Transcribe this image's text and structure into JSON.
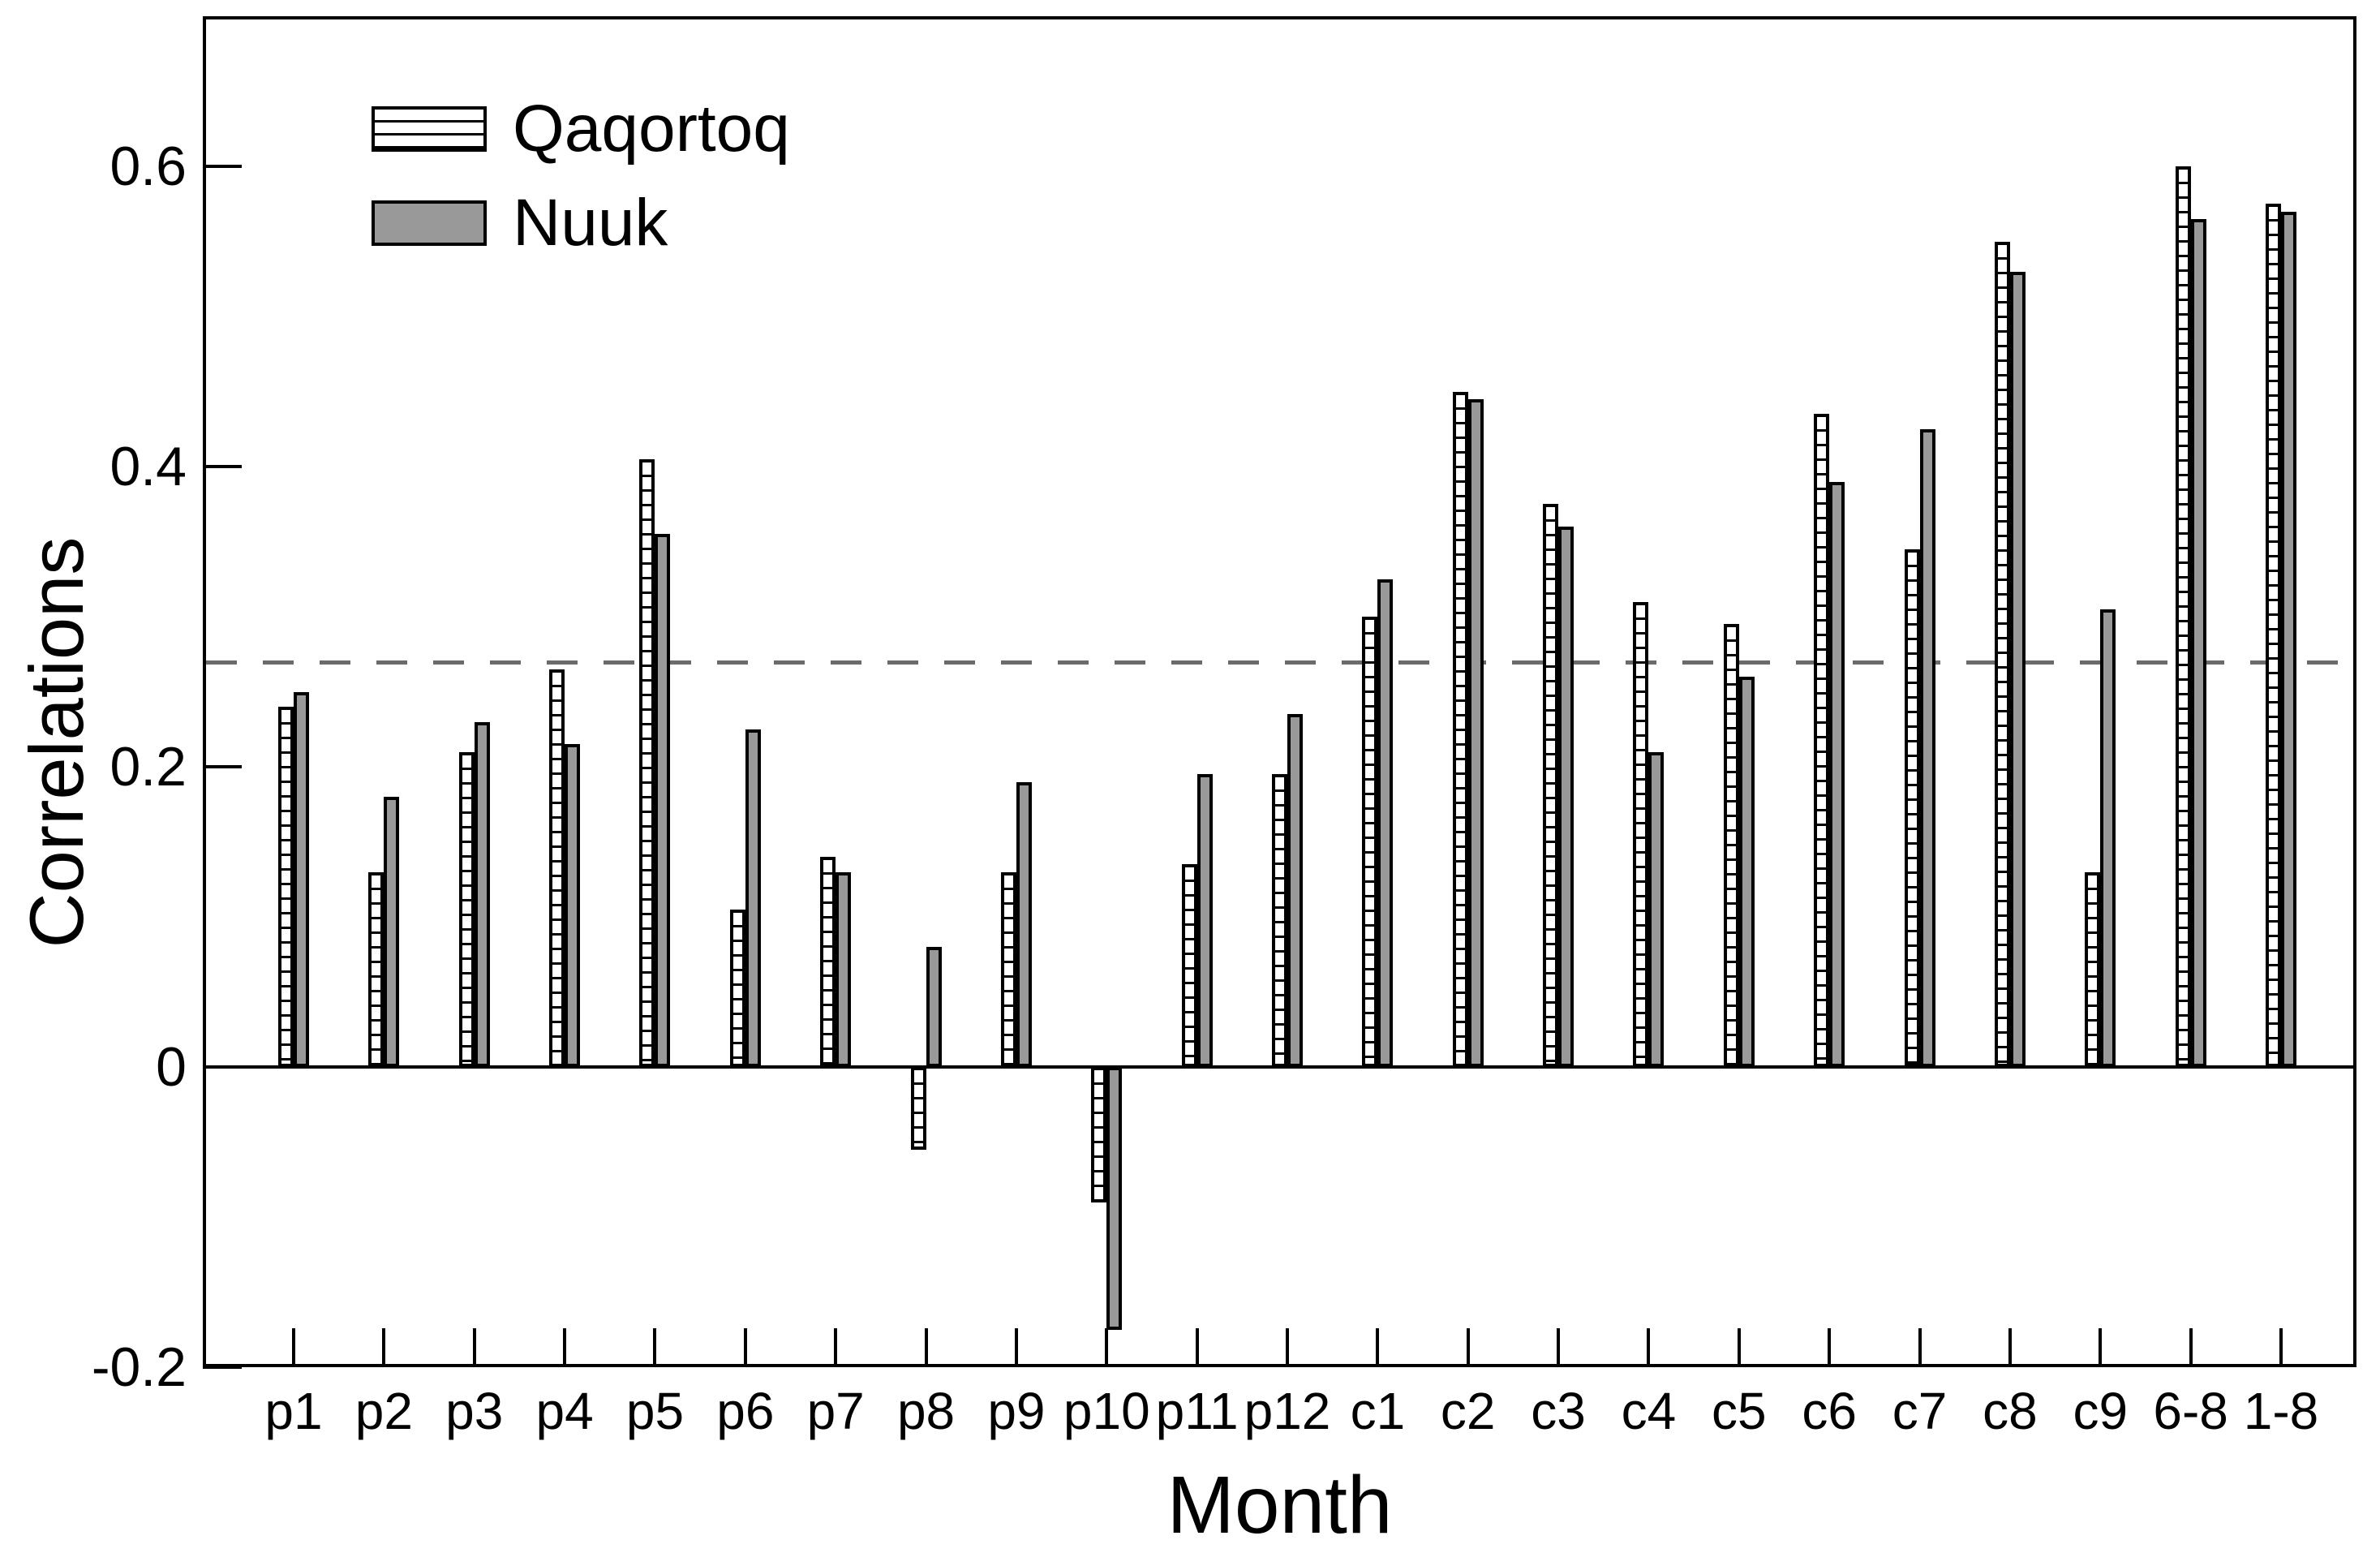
{
  "figure": {
    "background": "#ffffff",
    "axis_color": "#000000"
  },
  "chart_data": {
    "type": "bar",
    "title": "",
    "xlabel": "Month",
    "ylabel": "Correlations",
    "categories": [
      "p1",
      "p2",
      "p3",
      "p4",
      "p5",
      "p6",
      "p7",
      "p8",
      "p9",
      "p10",
      "p11",
      "p12",
      "c1",
      "c2",
      "c3",
      "c4",
      "c5",
      "c6",
      "c7",
      "c8",
      "c9",
      "6-8",
      "1-8"
    ],
    "series": [
      {
        "name": "Qaqortoq",
        "style": "hatched-horizontal",
        "fill": "#ffffff",
        "hatch_color": "#000000",
        "values": [
          0.24,
          0.13,
          0.21,
          0.265,
          0.405,
          0.105,
          0.14,
          -0.055,
          0.13,
          -0.09,
          0.135,
          0.195,
          0.3,
          0.45,
          0.375,
          0.31,
          0.295,
          0.435,
          0.345,
          0.55,
          0.13,
          0.6,
          0.575
        ]
      },
      {
        "name": "Nuuk",
        "style": "solid",
        "fill": "#999999",
        "values": [
          0.25,
          0.18,
          0.23,
          0.215,
          0.355,
          0.225,
          0.13,
          0.08,
          0.19,
          -0.175,
          0.195,
          0.235,
          0.325,
          0.445,
          0.36,
          0.21,
          0.26,
          0.39,
          0.425,
          0.53,
          0.305,
          0.565,
          0.57
        ]
      }
    ],
    "reference_line": {
      "value": 0.27,
      "style": "dashed",
      "color": "#6b6b6b"
    },
    "y_axis": {
      "range": [
        -0.2,
        0.7
      ],
      "ticks": [
        -0.2,
        0,
        0.2,
        0.4,
        0.6
      ],
      "tick_labels": [
        "-0.2",
        "0",
        "0.2",
        "0.4",
        "0.6"
      ]
    },
    "legend": {
      "position": "top-left",
      "entries": [
        "Qaqortoq",
        "Nuuk"
      ]
    },
    "grid": false
  }
}
